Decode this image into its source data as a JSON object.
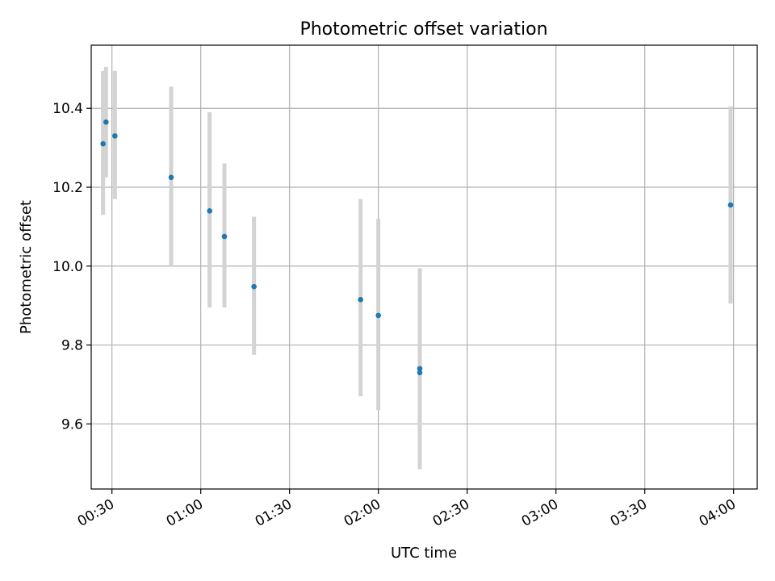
{
  "chart_data": {
    "type": "scatter",
    "title": "Photometric offset variation",
    "xlabel": "UTC time",
    "ylabel": "Photometric offset",
    "xlim": [
      "00:23",
      "04:08"
    ],
    "ylim": [
      9.435,
      10.56
    ],
    "x_ticks": [
      "00:30",
      "01:00",
      "01:30",
      "02:00",
      "02:30",
      "03:00",
      "03:30",
      "04:00"
    ],
    "y_ticks": [
      "9.6",
      "9.8",
      "10.0",
      "10.2",
      "10.4"
    ],
    "grid": true,
    "colors": {
      "points": "#1f77b4",
      "error_bars": "#d3d3d3",
      "grid": "#b0b0b0"
    },
    "points": [
      {
        "x": "00:27",
        "y": 10.31,
        "yerr_low": 10.13,
        "yerr_high": 10.495
      },
      {
        "x": "00:28",
        "y": 10.365,
        "yerr_low": 10.225,
        "yerr_high": 10.505
      },
      {
        "x": "00:31",
        "y": 10.33,
        "yerr_low": 10.17,
        "yerr_high": 10.495
      },
      {
        "x": "00:50",
        "y": 10.225,
        "yerr_low": 10.0,
        "yerr_high": 10.455
      },
      {
        "x": "01:03",
        "y": 10.14,
        "yerr_low": 9.895,
        "yerr_high": 10.39
      },
      {
        "x": "01:08",
        "y": 10.075,
        "yerr_low": 9.895,
        "yerr_high": 10.26
      },
      {
        "x": "01:18",
        "y": 9.948,
        "yerr_low": 9.775,
        "yerr_high": 10.125
      },
      {
        "x": "01:54",
        "y": 9.915,
        "yerr_low": 9.67,
        "yerr_high": 10.17
      },
      {
        "x": "02:00",
        "y": 9.875,
        "yerr_low": 9.635,
        "yerr_high": 10.12
      },
      {
        "x": "02:14",
        "y": 9.74,
        "yerr_low": 9.49,
        "yerr_high": 9.995
      },
      {
        "x": "02:14",
        "y": 9.73,
        "yerr_low": 9.485,
        "yerr_high": 9.98
      },
      {
        "x": "03:59",
        "y": 10.155,
        "yerr_low": 9.905,
        "yerr_high": 10.405
      }
    ]
  }
}
